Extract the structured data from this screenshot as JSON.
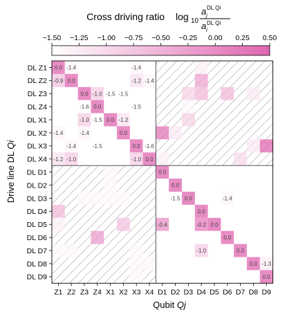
{
  "chart_data": {
    "type": "heatmap",
    "colorbar": {
      "title": "Cross driving ratio",
      "formula": {
        "prefix": "log",
        "base": "10",
        "numerator": "a",
        "numerator_sub": "j",
        "numerator_sup": "DL Qi",
        "denominator": "a",
        "denominator_sub": "i",
        "denominator_sup": "DL Qi"
      },
      "ticks": [
        "−1.50",
        "−1.25",
        "−1.00",
        "−0.75",
        "−0.50",
        "−0.25",
        "0.00",
        "0.25",
        "0.50"
      ],
      "vmin": -1.5,
      "vmax": 0.5,
      "color_low": "#ffffff",
      "color_high": "#e066b0",
      "placement": "top"
    },
    "xlabel": "Qubit Qj",
    "ylabel": "Drive line DL Qi",
    "xlabel_parts": [
      "Qubit ",
      "Qj"
    ],
    "ylabel_parts": [
      "Drive line DL ",
      "Qi"
    ],
    "columns": [
      "Z1",
      "Z2",
      "Z3",
      "Z4",
      "X1",
      "X2",
      "X3",
      "X4",
      "D1",
      "D2",
      "D3",
      "D4",
      "D5",
      "D6",
      "D7",
      "D8",
      "D9"
    ],
    "rows": [
      "DL Z1",
      "DL Z2",
      "DL Z3",
      "DL Z4",
      "DL X1",
      "DL X2",
      "DL X3",
      "DL X4",
      "DL D1",
      "DL D2",
      "DL D3",
      "DL D4",
      "DL D5",
      "DL D6",
      "DL D7",
      "DL D8",
      "DL D9"
    ],
    "cells": [
      {
        "r": 0,
        "c": 0,
        "v": 0.0,
        "label": "0.0"
      },
      {
        "r": 0,
        "c": 1,
        "v": -1.4,
        "label": "-1.4"
      },
      {
        "r": 0,
        "c": 6,
        "v": -1.4,
        "label": "-1.4"
      },
      {
        "r": 1,
        "c": 0,
        "v": -0.9,
        "label": "-0.9"
      },
      {
        "r": 1,
        "c": 1,
        "v": 0.0,
        "label": "0.0"
      },
      {
        "r": 1,
        "c": 6,
        "v": -1.2,
        "label": "-1.2"
      },
      {
        "r": 1,
        "c": 7,
        "v": -1.4,
        "label": "-1.4"
      },
      {
        "r": 2,
        "c": 2,
        "v": 0.0,
        "label": "0.0"
      },
      {
        "r": 2,
        "c": 3,
        "v": -1.0,
        "label": "-1.0"
      },
      {
        "r": 2,
        "c": 4,
        "v": -1.5,
        "label": "-1.5"
      },
      {
        "r": 2,
        "c": 5,
        "v": -1.5,
        "label": "-1.5"
      },
      {
        "r": 3,
        "c": 2,
        "v": -1.6,
        "label": "-1.6"
      },
      {
        "r": 3,
        "c": 3,
        "v": 0.0,
        "label": "0.0"
      },
      {
        "r": 3,
        "c": 6,
        "v": -1.5,
        "label": "-1.5"
      },
      {
        "r": 4,
        "c": 2,
        "v": -1.0,
        "label": "-1.0"
      },
      {
        "r": 4,
        "c": 3,
        "v": -1.5,
        "label": "-1.5"
      },
      {
        "r": 4,
        "c": 4,
        "v": 0.0,
        "label": "0.0"
      },
      {
        "r": 4,
        "c": 5,
        "v": -1.2,
        "label": "-1.2"
      },
      {
        "r": 5,
        "c": 0,
        "v": -1.4,
        "label": "-1.4"
      },
      {
        "r": 5,
        "c": 2,
        "v": -1.4,
        "label": "-1.4"
      },
      {
        "r": 5,
        "c": 5,
        "v": 0.0,
        "label": "0.0"
      },
      {
        "r": 6,
        "c": 1,
        "v": -1.4,
        "label": "-1.4"
      },
      {
        "r": 6,
        "c": 3,
        "v": -1.5,
        "label": "-1.5"
      },
      {
        "r": 6,
        "c": 6,
        "v": 0.0,
        "label": "0.0"
      },
      {
        "r": 6,
        "c": 7,
        "v": -1.6,
        "label": "-1.6"
      },
      {
        "r": 7,
        "c": 0,
        "v": -1.2,
        "label": "-1.2"
      },
      {
        "r": 7,
        "c": 1,
        "v": -1.0,
        "label": "-1.0"
      },
      {
        "r": 7,
        "c": 6,
        "v": -1.0,
        "label": "-1.0"
      },
      {
        "r": 7,
        "c": 7,
        "v": 0.0,
        "label": "0.0"
      },
      {
        "r": 8,
        "c": 8,
        "v": 0.0,
        "label": "0.0"
      },
      {
        "r": 9,
        "c": 9,
        "v": 0.0,
        "label": "0.0"
      },
      {
        "r": 10,
        "c": 9,
        "v": -1.5,
        "label": "-1.5"
      },
      {
        "r": 10,
        "c": 10,
        "v": 0.0,
        "label": "0.0"
      },
      {
        "r": 10,
        "c": 13,
        "v": -1.4,
        "label": "-1.4"
      },
      {
        "r": 11,
        "c": 11,
        "v": 0.0,
        "label": "0.0"
      },
      {
        "r": 12,
        "c": 8,
        "v": -0.4,
        "label": "-0.4"
      },
      {
        "r": 12,
        "c": 11,
        "v": -0.2,
        "label": "-0.2"
      },
      {
        "r": 12,
        "c": 12,
        "v": 0.0,
        "label": "0.0"
      },
      {
        "r": 13,
        "c": 13,
        "v": 0.0,
        "label": "0.0"
      },
      {
        "r": 14,
        "c": 11,
        "v": -1.0,
        "label": "-1.0"
      },
      {
        "r": 14,
        "c": 14,
        "v": 0.0,
        "label": "0.0"
      },
      {
        "r": 15,
        "c": 15,
        "v": 0.0,
        "label": "0.0"
      },
      {
        "r": 15,
        "c": 16,
        "v": -1.3,
        "label": "-1.3"
      },
      {
        "r": 16,
        "c": 16,
        "v": 0.0,
        "label": "0.0"
      }
    ],
    "faint_cells": [
      {
        "r": 0,
        "c": 11,
        "v": -1.3
      },
      {
        "r": 1,
        "c": 11,
        "v": -0.3
      },
      {
        "r": 2,
        "c": 10,
        "v": -0.9
      },
      {
        "r": 2,
        "c": 11,
        "v": -0.6
      },
      {
        "r": 2,
        "c": 13,
        "v": -0.6
      },
      {
        "r": 2,
        "c": 15,
        "v": -1.2
      },
      {
        "r": 3,
        "c": 10,
        "v": -1.4
      },
      {
        "r": 4,
        "c": 10,
        "v": -0.9
      },
      {
        "r": 5,
        "c": 8,
        "v": 0.3
      },
      {
        "r": 5,
        "c": 9,
        "v": -1.2
      },
      {
        "r": 6,
        "c": 15,
        "v": -1.2
      },
      {
        "r": 6,
        "c": 16,
        "v": 0.5
      },
      {
        "r": 7,
        "c": 8,
        "v": -1.3
      },
      {
        "r": 7,
        "c": 14,
        "v": -1.0
      },
      {
        "r": 8,
        "c": 4,
        "v": -1.4
      },
      {
        "r": 9,
        "c": 4,
        "v": -1.4
      },
      {
        "r": 10,
        "c": 2,
        "v": -1.4
      },
      {
        "r": 10,
        "c": 3,
        "v": -1.4
      },
      {
        "r": 10,
        "c": 4,
        "v": -1.4
      },
      {
        "r": 10,
        "c": 5,
        "v": -1.4
      },
      {
        "r": 11,
        "c": 0,
        "v": -0.6
      },
      {
        "r": 12,
        "c": 0,
        "v": -1.3
      },
      {
        "r": 12,
        "c": 5,
        "v": -0.7
      },
      {
        "r": 13,
        "c": 3,
        "v": -0.2
      },
      {
        "r": 14,
        "c": 0,
        "v": -1.4
      },
      {
        "r": 14,
        "c": 1,
        "v": -1.4
      },
      {
        "r": 14,
        "c": 6,
        "v": -1.4
      },
      {
        "r": 15,
        "c": 6,
        "v": -1.4
      },
      {
        "r": 15,
        "c": 7,
        "v": -1.4
      },
      {
        "r": 16,
        "c": 6,
        "v": -1.4
      }
    ],
    "hatched_blocks": [
      {
        "rows": [
          0,
          7
        ],
        "cols": [
          8,
          16
        ]
      },
      {
        "rows": [
          8,
          16
        ],
        "cols": [
          0,
          7
        ]
      }
    ]
  }
}
